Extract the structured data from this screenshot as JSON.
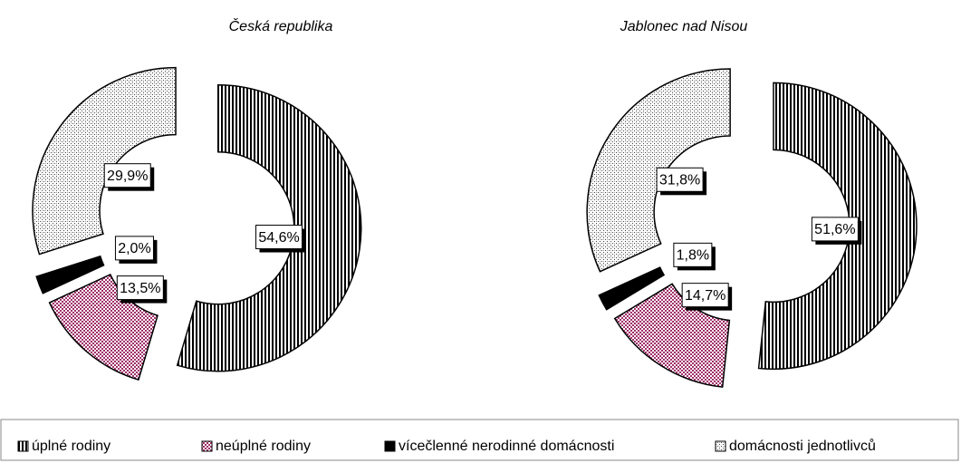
{
  "chart_data": [
    {
      "type": "donut",
      "title": "Česká republika",
      "categories": [
        "úplné rodiny",
        "neúplné rodiny",
        "vícečlenné nerodinné domácnosti",
        "domácnosti jednotlivců"
      ],
      "values": [
        54.6,
        13.5,
        2.0,
        29.9
      ],
      "value_labels": [
        "54,6%",
        "13,5%",
        "2,0%",
        "29,9%"
      ],
      "colors": [
        "url(#pat-vert)",
        "url(#pat-check)",
        "#000000",
        "url(#pat-dots)"
      ]
    },
    {
      "type": "donut",
      "title": "Jablonec nad Nisou",
      "categories": [
        "úplné rodiny",
        "neúplné rodiny",
        "vícečlenné nerodinné domácnosti",
        "domácnosti jednotlivců"
      ],
      "values": [
        51.6,
        14.7,
        1.8,
        31.8
      ],
      "value_labels": [
        "51,6%",
        "14,7%",
        "1,8%",
        "31,8%"
      ],
      "colors": [
        "url(#pat-vert)",
        "url(#pat-check)",
        "#000000",
        "url(#pat-dots)"
      ]
    }
  ]
}
